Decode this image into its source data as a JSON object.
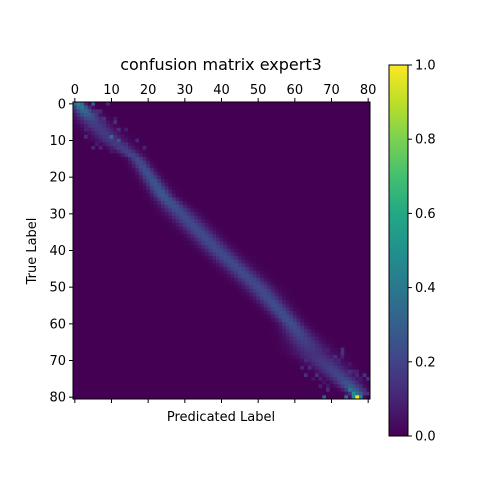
{
  "chart_data": {
    "type": "heatmap",
    "title": "confusion matrix expert3",
    "xlabel": "Predicated Label",
    "ylabel": "True Label",
    "size": 81,
    "xlim": [
      0,
      80
    ],
    "ylim": [
      0,
      80
    ],
    "x_ticks": [
      0,
      10,
      20,
      30,
      40,
      50,
      60,
      70,
      80
    ],
    "y_ticks": [
      0,
      10,
      20,
      30,
      40,
      50,
      60,
      70,
      80
    ],
    "x_axis_position": "top",
    "colormap": "viridis",
    "colorbar": {
      "range": [
        0.0,
        1.0
      ],
      "ticks": [
        "0.0",
        "0.2",
        "0.4",
        "0.6",
        "0.8",
        "1.0"
      ]
    },
    "diagonal_profile": [
      {
        "row": 0,
        "center": 1,
        "peak": 0.45,
        "width": 1.2
      },
      {
        "row": 5,
        "center": 5,
        "peak": 0.18,
        "width": 2.5
      },
      {
        "row": 10,
        "center": 10,
        "peak": 0.16,
        "width": 2.5
      },
      {
        "row": 15,
        "center": 17,
        "peak": 0.22,
        "width": 1.5
      },
      {
        "row": 25,
        "center": 24,
        "peak": 0.28,
        "width": 1.8
      },
      {
        "row": 30,
        "center": 29,
        "peak": 0.22,
        "width": 2.5
      },
      {
        "row": 40,
        "center": 39,
        "peak": 0.22,
        "width": 2.5
      },
      {
        "row": 50,
        "center": 50,
        "peak": 0.22,
        "width": 2.5
      },
      {
        "row": 60,
        "center": 59,
        "peak": 0.24,
        "width": 2.0
      },
      {
        "row": 68,
        "center": 65,
        "peak": 0.14,
        "width": 3.5
      },
      {
        "row": 75,
        "center": 73,
        "peak": 0.22,
        "width": 2.5
      },
      {
        "row": 79,
        "center": 77,
        "peak": 0.35,
        "width": 1.5
      },
      {
        "row": 80,
        "center": 77,
        "peak": 1.0,
        "width": 0.8
      }
    ],
    "hot_cells": [
      {
        "row": 0,
        "col": 2,
        "value": 0.35
      },
      {
        "row": 0,
        "col": 5,
        "value": 0.3
      },
      {
        "row": 1,
        "col": 2,
        "value": 0.4
      },
      {
        "row": 9,
        "col": 10,
        "value": 0.35
      },
      {
        "row": 10,
        "col": 12,
        "value": 0.25
      },
      {
        "row": 78,
        "col": 75,
        "value": 0.4
      },
      {
        "row": 79,
        "col": 76,
        "value": 0.5
      },
      {
        "row": 80,
        "col": 68,
        "value": 0.3
      },
      {
        "row": 80,
        "col": 74,
        "value": 0.35
      },
      {
        "row": 80,
        "col": 77,
        "value": 1.0
      }
    ]
  }
}
